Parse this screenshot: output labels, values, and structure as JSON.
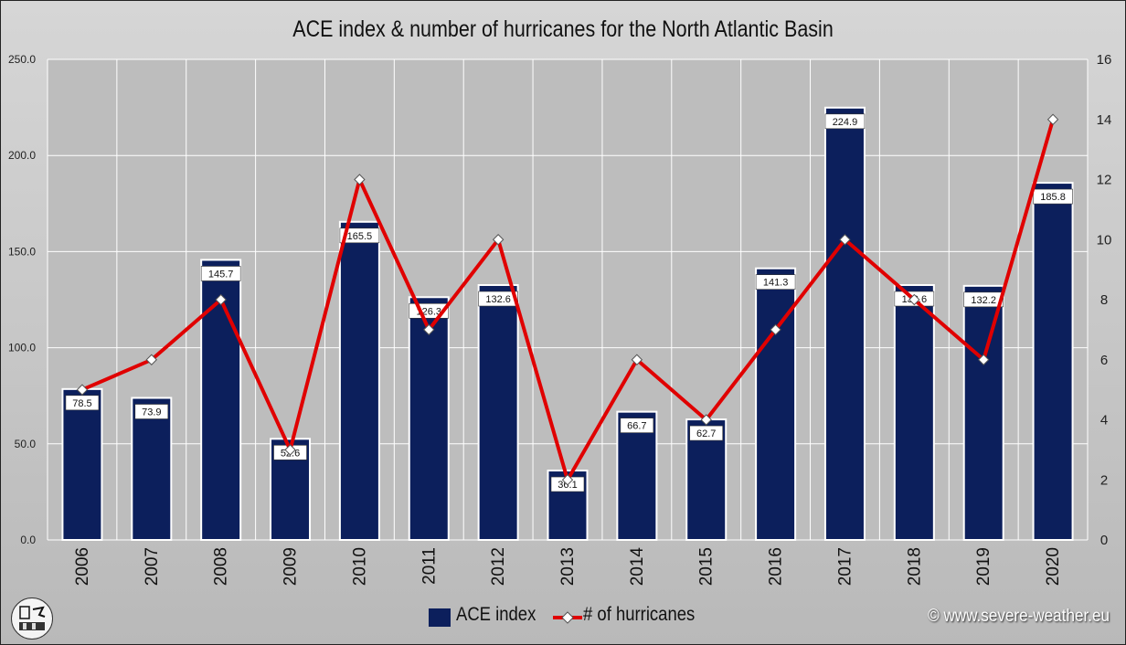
{
  "chart_data": {
    "type": "bar+line",
    "title": "ACE index & number of hurricanes for the North Atlantic Basin",
    "categories": [
      "2006",
      "2007",
      "2008",
      "2009",
      "2010",
      "2011",
      "2012",
      "2013",
      "2014",
      "2015",
      "2016",
      "2017",
      "2018",
      "2019",
      "2020"
    ],
    "series": [
      {
        "name": "ACE index",
        "type": "bar",
        "axis": "left",
        "color": "#0c1f5c",
        "values": [
          78.5,
          73.9,
          145.7,
          52.6,
          165.5,
          126.3,
          132.6,
          36.1,
          66.7,
          62.7,
          141.3,
          224.9,
          132.6,
          132.2,
          185.8
        ],
        "labels": [
          "78.5",
          "73.9",
          "145.7",
          "52.6",
          "165.5",
          "126.3",
          "132.6",
          "36.1",
          "66.7",
          "62.7",
          "141.3",
          "224.9",
          "132.6",
          "132.2",
          "185.8"
        ]
      },
      {
        "name": "# of hurricanes",
        "type": "line",
        "axis": "right",
        "color": "#e00000",
        "values": [
          5,
          6,
          8,
          3,
          12,
          7,
          10,
          2,
          6,
          4,
          7,
          10,
          8,
          6,
          14
        ]
      }
    ],
    "y_left": {
      "min": 0,
      "max": 250,
      "ticks": [
        "0.0",
        "50.0",
        "100.0",
        "150.0",
        "200.0",
        "250.0"
      ]
    },
    "y_right": {
      "min": 0,
      "max": 16,
      "ticks": [
        "0",
        "2",
        "4",
        "6",
        "8",
        "10",
        "12",
        "14",
        "16"
      ]
    },
    "grid": true,
    "legend": "bottom-center"
  },
  "copyright": "© www.severe-weather.eu"
}
